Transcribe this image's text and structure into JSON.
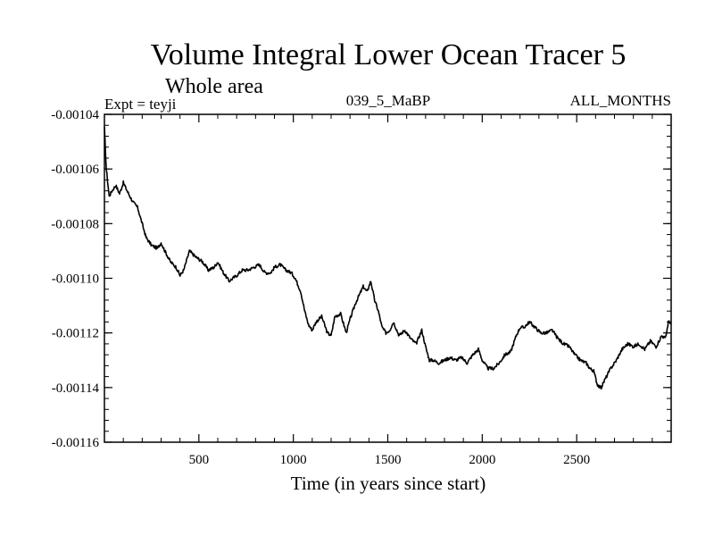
{
  "chart_data": {
    "type": "line",
    "title": "Volume Integral Lower Ocean Tracer 5",
    "subtitle": "Whole area",
    "header_left": "Expt = teyji",
    "header_center": "039_5_MaBP",
    "header_right": "ALL_MONTHS",
    "xlabel": "Time (in years since start)",
    "ylabel": "",
    "xlim": [
      0,
      3000
    ],
    "ylim": [
      -0.00116,
      -0.00104
    ],
    "x_ticks": [
      500,
      1000,
      1500,
      2000,
      2500
    ],
    "x_tick_labels": [
      "500",
      "1000",
      "1500",
      "2000",
      "2500"
    ],
    "y_ticks": [
      -0.00104,
      -0.00106,
      -0.00108,
      -0.0011,
      -0.00112,
      -0.00114,
      -0.00116
    ],
    "y_tick_labels": [
      "-0.00104",
      "-0.00106",
      "-0.00108",
      "-0.00110",
      "-0.00112",
      "-0.00114",
      "-0.00116"
    ],
    "grid": false,
    "legend": "none",
    "line_color": "#000000",
    "series": [
      {
        "name": "Volume Integral Lower Ocean Tracer 5",
        "x": [
          0,
          10,
          25,
          40,
          60,
          80,
          100,
          120,
          150,
          175,
          200,
          220,
          250,
          280,
          300,
          320,
          350,
          380,
          400,
          420,
          450,
          480,
          500,
          520,
          550,
          580,
          600,
          630,
          660,
          700,
          730,
          760,
          790,
          820,
          850,
          880,
          900,
          930,
          960,
          990,
          1010,
          1040,
          1060,
          1080,
          1100,
          1120,
          1150,
          1180,
          1200,
          1220,
          1250,
          1280,
          1300,
          1330,
          1350,
          1370,
          1390,
          1410,
          1430,
          1450,
          1470,
          1490,
          1510,
          1530,
          1560,
          1590,
          1620,
          1650,
          1680,
          1700,
          1720,
          1740,
          1770,
          1800,
          1830,
          1860,
          1890,
          1920,
          1950,
          1980,
          2000,
          2030,
          2060,
          2090,
          2120,
          2150,
          2180,
          2200,
          2220,
          2250,
          2280,
          2310,
          2340,
          2370,
          2400,
          2430,
          2460,
          2490,
          2520,
          2550,
          2570,
          2590,
          2610,
          2630,
          2650,
          2680,
          2710,
          2740,
          2770,
          2800,
          2830,
          2860,
          2890,
          2920,
          2950,
          2970,
          2985,
          3000
        ],
        "values": [
          -0.001045,
          -0.00106,
          -0.00107,
          -0.001068,
          -0.001066,
          -0.001069,
          -0.001065,
          -0.001068,
          -0.001072,
          -0.001074,
          -0.00108,
          -0.001085,
          -0.001088,
          -0.001089,
          -0.001087,
          -0.00109,
          -0.001094,
          -0.001096,
          -0.001099,
          -0.001097,
          -0.00109,
          -0.001092,
          -0.001093,
          -0.001094,
          -0.001097,
          -0.001096,
          -0.001094,
          -0.001098,
          -0.001101,
          -0.001099,
          -0.001097,
          -0.001097,
          -0.001096,
          -0.001095,
          -0.001098,
          -0.001098,
          -0.001096,
          -0.001095,
          -0.001097,
          -0.001098,
          -0.0011,
          -0.001105,
          -0.001112,
          -0.001117,
          -0.001119,
          -0.001116,
          -0.001114,
          -0.00112,
          -0.001121,
          -0.001114,
          -0.001113,
          -0.00112,
          -0.001115,
          -0.001109,
          -0.001106,
          -0.001103,
          -0.001105,
          -0.001101,
          -0.001108,
          -0.001112,
          -0.001118,
          -0.00112,
          -0.001119,
          -0.001116,
          -0.001121,
          -0.001119,
          -0.001122,
          -0.001124,
          -0.001119,
          -0.001125,
          -0.00113,
          -0.00113,
          -0.001131,
          -0.00113,
          -0.001129,
          -0.00113,
          -0.001129,
          -0.001131,
          -0.001128,
          -0.001126,
          -0.00113,
          -0.001133,
          -0.001133,
          -0.001131,
          -0.001128,
          -0.001127,
          -0.001121,
          -0.001118,
          -0.001118,
          -0.001116,
          -0.001118,
          -0.00112,
          -0.00112,
          -0.001119,
          -0.001122,
          -0.001124,
          -0.001125,
          -0.001128,
          -0.00113,
          -0.001131,
          -0.001133,
          -0.001134,
          -0.001139,
          -0.00114,
          -0.001137,
          -0.001133,
          -0.00113,
          -0.001126,
          -0.001124,
          -0.001125,
          -0.001124,
          -0.001126,
          -0.001123,
          -0.001125,
          -0.001121,
          -0.001122,
          -0.001116,
          -0.001116
        ]
      }
    ]
  }
}
